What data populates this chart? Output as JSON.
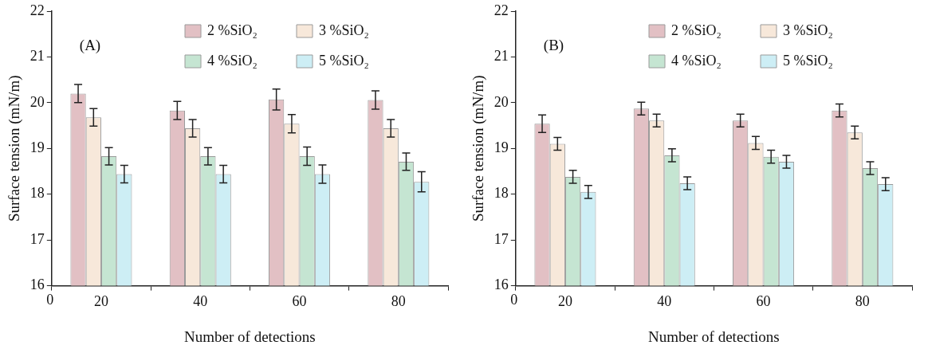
{
  "chart_data": [
    {
      "type": "bar",
      "title": "(A)",
      "xlabel": "Number of detections",
      "ylabel": "Surface tension (mN/m)",
      "categories": [
        "20",
        "40",
        "60",
        "80"
      ],
      "ylim": [
        16,
        22
      ],
      "yticks": [
        16,
        17,
        18,
        19,
        20,
        21,
        22
      ],
      "grid": false,
      "legend": "top right",
      "annotations": [
        "0"
      ],
      "series": [
        {
          "name": "2 %SiO₂",
          "color": "#e2c0c4",
          "values": [
            20.2,
            19.83,
            20.07,
            20.06
          ],
          "errors": [
            0.2,
            0.2,
            0.23,
            0.2
          ]
        },
        {
          "name": "3 %SiO₂",
          "color": "#f7e8da",
          "values": [
            19.68,
            19.44,
            19.54,
            19.44
          ],
          "errors": [
            0.19,
            0.19,
            0.2,
            0.19
          ]
        },
        {
          "name": "4 %SiO₂",
          "color": "#c5e5d2",
          "values": [
            18.83,
            18.83,
            18.83,
            18.71
          ],
          "errors": [
            0.19,
            0.19,
            0.2,
            0.19
          ]
        },
        {
          "name": "5 %SiO₂",
          "color": "#cdeef5",
          "values": [
            18.44,
            18.44,
            18.44,
            18.27
          ],
          "errors": [
            0.19,
            0.19,
            0.2,
            0.22
          ]
        }
      ]
    },
    {
      "type": "bar",
      "title": "(B)",
      "xlabel": "Number of detections",
      "ylabel": "Surface tension (mN/m)",
      "categories": [
        "20",
        "40",
        "60",
        "80"
      ],
      "ylim": [
        16,
        22
      ],
      "yticks": [
        16,
        17,
        18,
        19,
        20,
        21,
        22
      ],
      "grid": false,
      "legend": "top right",
      "annotations": [
        "0"
      ],
      "series": [
        {
          "name": "2 %SiO₂",
          "color": "#e2c0c4",
          "values": [
            19.54,
            19.87,
            19.61,
            19.83
          ],
          "errors": [
            0.19,
            0.14,
            0.14,
            0.14
          ]
        },
        {
          "name": "3 %SiO₂",
          "color": "#f7e8da",
          "values": [
            19.1,
            19.61,
            19.12,
            19.35
          ],
          "errors": [
            0.14,
            0.14,
            0.14,
            0.14
          ]
        },
        {
          "name": "4 %SiO₂",
          "color": "#c5e5d2",
          "values": [
            18.38,
            18.85,
            18.82,
            18.57
          ],
          "errors": [
            0.14,
            0.14,
            0.14,
            0.14
          ]
        },
        {
          "name": "5 %SiO₂",
          "color": "#cdeef5",
          "values": [
            18.05,
            18.24,
            18.71,
            18.22
          ],
          "errors": [
            0.14,
            0.14,
            0.14,
            0.14
          ]
        }
      ]
    }
  ]
}
